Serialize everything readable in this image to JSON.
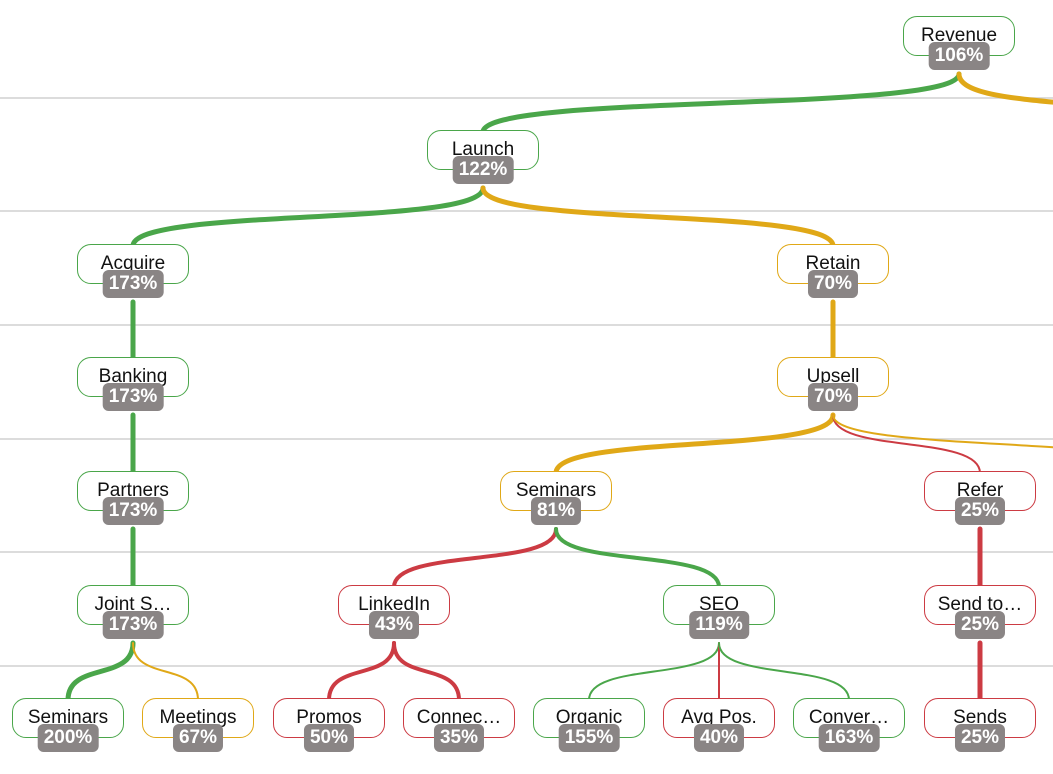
{
  "colors": {
    "green": "#4aa64a",
    "yellow": "#e0a817",
    "red": "#cc3b43",
    "badge": "#8a8585",
    "gridline": "#d0d0d0"
  },
  "nodes": [
    {
      "id": "revenue",
      "label": "Revenue",
      "pct": "106%",
      "status": "green"
    },
    {
      "id": "launch",
      "label": "Launch",
      "pct": "122%",
      "status": "green"
    },
    {
      "id": "acquire",
      "label": "Acquire",
      "pct": "173%",
      "status": "green"
    },
    {
      "id": "retain",
      "label": "Retain",
      "pct": "70%",
      "status": "yellow"
    },
    {
      "id": "banking",
      "label": "Banking",
      "pct": "173%",
      "status": "green"
    },
    {
      "id": "upsell",
      "label": "Upsell",
      "pct": "70%",
      "status": "yellow"
    },
    {
      "id": "partners",
      "label": "Partners",
      "pct": "173%",
      "status": "green"
    },
    {
      "id": "seminars1",
      "label": "Seminars",
      "pct": "81%",
      "status": "yellow"
    },
    {
      "id": "refer",
      "label": "Refer",
      "pct": "25%",
      "status": "red"
    },
    {
      "id": "joint",
      "label": "Joint S…",
      "pct": "173%",
      "status": "green"
    },
    {
      "id": "linkedin",
      "label": "LinkedIn",
      "pct": "43%",
      "status": "red"
    },
    {
      "id": "seo",
      "label": "SEO",
      "pct": "119%",
      "status": "green"
    },
    {
      "id": "sendto",
      "label": "Send to…",
      "pct": "25%",
      "status": "red"
    },
    {
      "id": "seminars2",
      "label": "Seminars",
      "pct": "200%",
      "status": "green"
    },
    {
      "id": "meetings",
      "label": "Meetings",
      "pct": "67%",
      "status": "yellow"
    },
    {
      "id": "promos",
      "label": "Promos",
      "pct": "50%",
      "status": "red"
    },
    {
      "id": "connec",
      "label": "Connec…",
      "pct": "35%",
      "status": "red"
    },
    {
      "id": "organic",
      "label": "Organic",
      "pct": "155%",
      "status": "green"
    },
    {
      "id": "avgpos",
      "label": "Avg Pos.",
      "pct": "40%",
      "status": "red"
    },
    {
      "id": "conver",
      "label": "Conver…",
      "pct": "163%",
      "status": "green"
    },
    {
      "id": "sends",
      "label": "Sends",
      "pct": "25%",
      "status": "red"
    }
  ],
  "edges": [
    {
      "from": "revenue",
      "to": "launch",
      "color": "green",
      "weight": "heavy"
    },
    {
      "from": "revenue",
      "to": "offscreen-right-1",
      "color": "yellow",
      "weight": "heavy"
    },
    {
      "from": "launch",
      "to": "acquire",
      "color": "green",
      "weight": "heavy"
    },
    {
      "from": "launch",
      "to": "retain",
      "color": "yellow",
      "weight": "heavy"
    },
    {
      "from": "acquire",
      "to": "banking",
      "color": "green",
      "weight": "heavy"
    },
    {
      "from": "retain",
      "to": "upsell",
      "color": "yellow",
      "weight": "heavy"
    },
    {
      "from": "banking",
      "to": "partners",
      "color": "green",
      "weight": "heavy"
    },
    {
      "from": "upsell",
      "to": "seminars1",
      "color": "yellow",
      "weight": "heavy"
    },
    {
      "from": "upsell",
      "to": "refer",
      "color": "red",
      "weight": "light"
    },
    {
      "from": "upsell",
      "to": "offscreen-right-2",
      "color": "yellow",
      "weight": "light"
    },
    {
      "from": "partners",
      "to": "joint",
      "color": "green",
      "weight": "heavy"
    },
    {
      "from": "seminars1",
      "to": "linkedin",
      "color": "red",
      "weight": "medium"
    },
    {
      "from": "seminars1",
      "to": "seo",
      "color": "green",
      "weight": "medium"
    },
    {
      "from": "refer",
      "to": "sendto",
      "color": "red",
      "weight": "heavy"
    },
    {
      "from": "joint",
      "to": "seminars2",
      "color": "green",
      "weight": "heavy"
    },
    {
      "from": "joint",
      "to": "meetings",
      "color": "yellow",
      "weight": "light"
    },
    {
      "from": "linkedin",
      "to": "promos",
      "color": "red",
      "weight": "medium"
    },
    {
      "from": "linkedin",
      "to": "connec",
      "color": "red",
      "weight": "medium"
    },
    {
      "from": "seo",
      "to": "organic",
      "color": "green",
      "weight": "light"
    },
    {
      "from": "seo",
      "to": "avgpos",
      "color": "red",
      "weight": "light"
    },
    {
      "from": "seo",
      "to": "conver",
      "color": "green",
      "weight": "light"
    },
    {
      "from": "sendto",
      "to": "sends",
      "color": "red",
      "weight": "heavy"
    }
  ]
}
